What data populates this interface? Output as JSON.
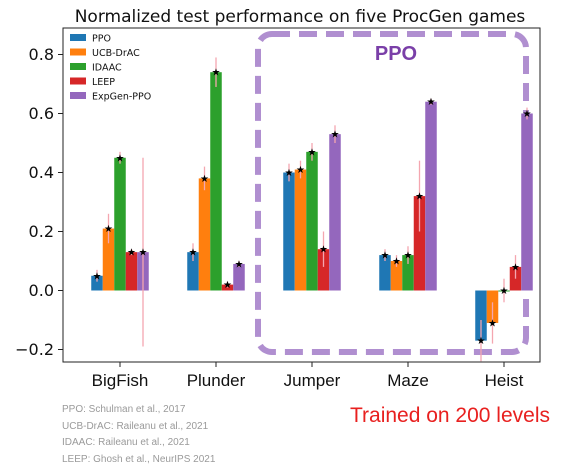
{
  "chart_data": {
    "type": "bar",
    "title": "Normalized test performance on five ProcGen games",
    "categories": [
      "BigFish",
      "Plunder",
      "Jumper",
      "Maze",
      "Heist"
    ],
    "ylim": [
      -0.22,
      0.87
    ],
    "yticks": [
      "−0.2",
      "0.0",
      "0.2",
      "0.4",
      "0.6",
      "0.8"
    ],
    "ytick_values": [
      -0.2,
      0.0,
      0.2,
      0.4,
      0.6,
      0.8
    ],
    "grid": false,
    "legend_position": "top-left",
    "series": [
      {
        "name": "PPO",
        "color": "#1f77b4",
        "values": [
          0.05,
          0.13,
          0.4,
          0.12,
          -0.17
        ],
        "err": [
          0.02,
          0.03,
          0.03,
          0.02,
          0.07
        ]
      },
      {
        "name": "UCB-DrAC",
        "color": "#ff7f0e",
        "values": [
          0.21,
          0.38,
          0.41,
          0.1,
          -0.11
        ],
        "err": [
          0.05,
          0.04,
          0.03,
          0.02,
          0.07
        ]
      },
      {
        "name": "IDAAC",
        "color": "#2ca02c",
        "values": [
          0.45,
          0.74,
          0.47,
          0.12,
          0.0
        ],
        "err": [
          0.02,
          0.05,
          0.03,
          0.03,
          0.04
        ]
      },
      {
        "name": "LEEP",
        "color": "#d62728",
        "values": [
          0.13,
          0.02,
          0.14,
          0.32,
          0.08
        ],
        "err": [
          0.01,
          0.01,
          0.06,
          0.12,
          0.04
        ]
      },
      {
        "name": "ExpGen-PPO",
        "color": "#9467bd",
        "values": [
          0.13,
          0.09,
          0.53,
          0.64,
          0.6
        ],
        "err": [
          0.32,
          0.01,
          0.03,
          0.01,
          0.02
        ]
      }
    ],
    "annotations": [
      "PPO"
    ]
  },
  "highlight_box": {
    "label": "PPO",
    "color": "#b08fd0"
  },
  "references": [
    "PPO: Schulman et al., 2017",
    "UCB-DrAC:  Raileanu et al., 2021",
    "IDAAC: Raileanu et al., 2021",
    "LEEP:  Ghosh et  al., NeurIPS 2021"
  ],
  "footnote": "Trained on 200 levels"
}
